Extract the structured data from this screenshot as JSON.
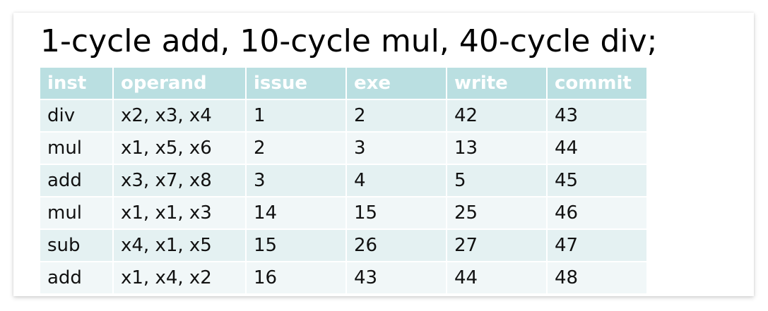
{
  "heading": "1-cycle add, 10-cycle mul, 40-cycle div;",
  "table": {
    "headers": [
      "inst",
      "operand",
      "issue",
      "exe",
      "write",
      "commit"
    ],
    "rows": [
      [
        "div",
        "x2, x3, x4",
        "1",
        "2",
        "42",
        "43"
      ],
      [
        "mul",
        "x1, x5, x6",
        "2",
        "3",
        "13",
        "44"
      ],
      [
        "add",
        "x3, x7, x8",
        "3",
        "4",
        "5",
        "45"
      ],
      [
        "mul",
        "x1, x1, x3",
        "14",
        "15",
        "25",
        "46"
      ],
      [
        "sub",
        "x4, x1, x5",
        "15",
        "26",
        "27",
        "47"
      ],
      [
        "add",
        "x1, x4, x2",
        "16",
        "43",
        "44",
        "48"
      ]
    ]
  },
  "colors": {
    "header_bg": "#badfe1",
    "row_odd_bg": "#e4f1f2",
    "row_even_bg": "#f1f7f8"
  }
}
